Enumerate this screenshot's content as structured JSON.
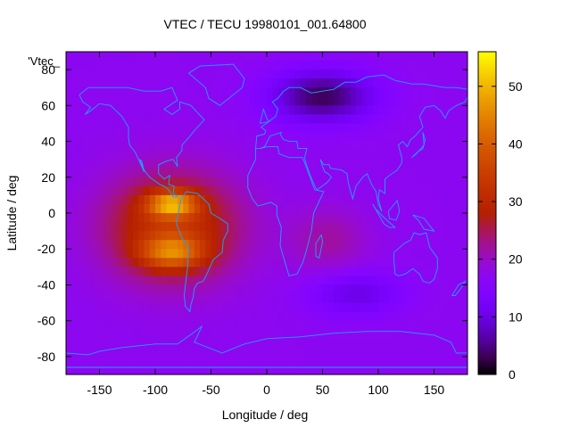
{
  "chart_data": {
    "type": "heatmap",
    "title": "VTEC / TECU 19980101_001.64800",
    "xlabel": "Longitude / deg",
    "ylabel": "Latitude / deg",
    "key_label": "'Vtec_",
    "xlim": [
      -180,
      180
    ],
    "ylim": [
      -90,
      90
    ],
    "x_ticks": [
      -150,
      -100,
      -50,
      0,
      50,
      100,
      150
    ],
    "y_ticks": [
      -80,
      -60,
      -40,
      -20,
      0,
      20,
      40,
      60,
      80
    ],
    "colorbar": {
      "min": 0,
      "max": 56,
      "ticks": [
        0,
        10,
        20,
        30,
        40,
        50
      ],
      "palette": "gnuplot-pm3d-black-purple-red-yellow"
    },
    "background_tec": 17,
    "features": [
      {
        "name": "equatorial-anomaly-north-crest",
        "lon": -85,
        "lat": 5,
        "peak_tec": 55
      },
      {
        "name": "equatorial-anomaly-south-crest",
        "lon": -85,
        "lat": -22,
        "peak_tec": 50
      },
      {
        "name": "dayside-enhancement",
        "lon": -85,
        "lat": -8,
        "peak_tec": 33
      },
      {
        "name": "secondary-enhancement-africa",
        "lon": 55,
        "lat": -15,
        "peak_tec": 22
      },
      {
        "name": "northern-trough",
        "lon": 50,
        "lat": 65,
        "peak_tec": 3
      },
      {
        "name": "southern-trough",
        "lon": 80,
        "lat": -45,
        "peak_tec": 10
      }
    ],
    "continent_outlines": "coastlines (cyan)"
  },
  "colors": {
    "coastline": "#1ea0ff",
    "frame": "#000000"
  }
}
